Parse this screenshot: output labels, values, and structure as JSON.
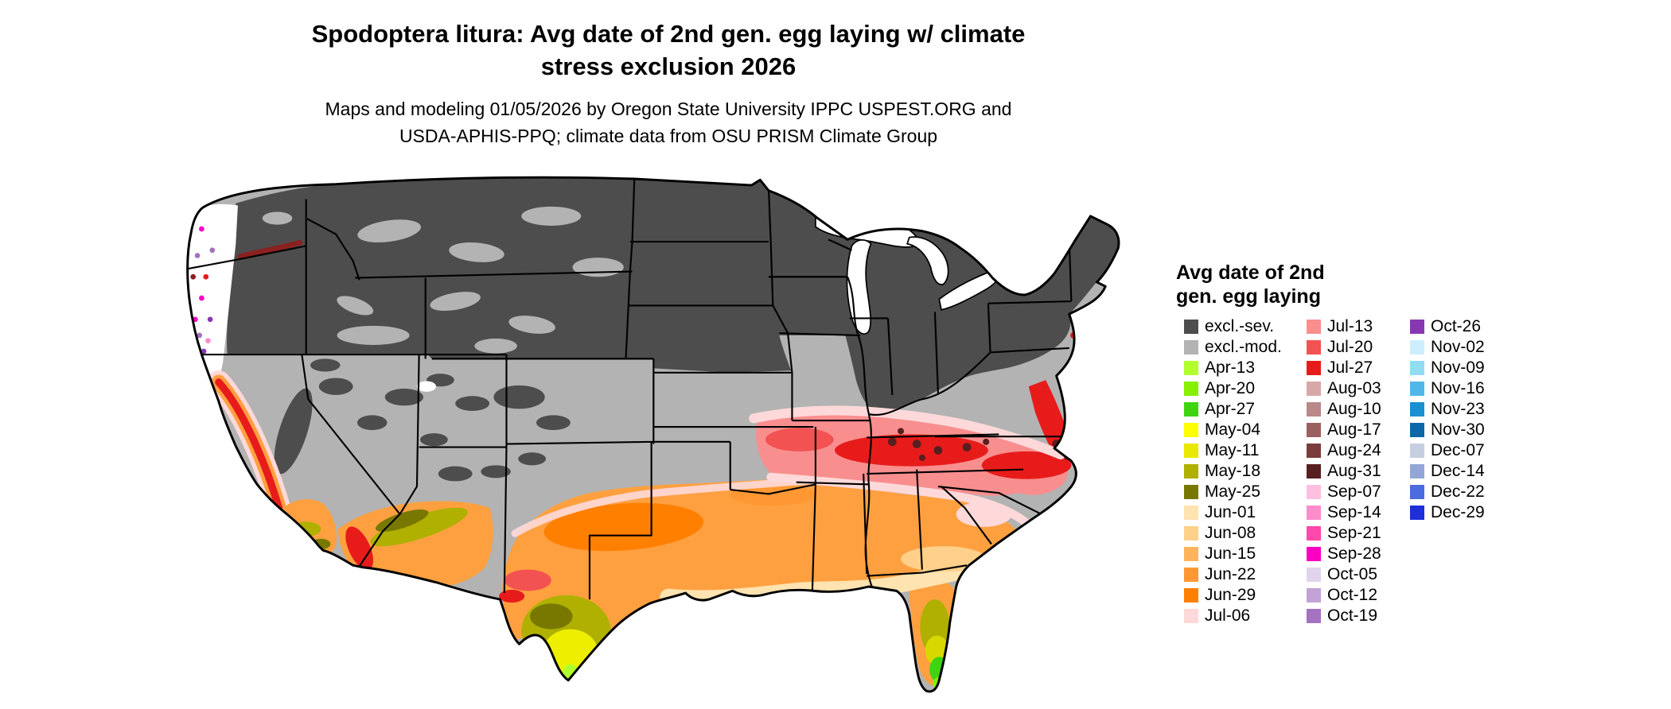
{
  "title": {
    "line1": "Spodoptera litura: Avg date of 2nd gen. egg laying w/ climate",
    "line2": "stress exclusion 2026"
  },
  "subtitle": {
    "line1": "Maps and modeling 01/05/2026 by Oregon State University IPPC USPEST.ORG and",
    "line2": "USDA-APHIS-PPQ; climate data from OSU PRISM Climate Group"
  },
  "legend": {
    "title_line1": "Avg date of 2nd",
    "title_line2": "gen. egg laying",
    "columns": [
      {
        "entries": [
          {
            "label": "excl.-sev.",
            "color": "#4d4d4d"
          },
          {
            "label": "excl.-mod.",
            "color": "#b3b3b3"
          },
          {
            "label": "Apr-13",
            "color": "#b2ff2e"
          },
          {
            "label": "Apr-20",
            "color": "#86f000"
          },
          {
            "label": "Apr-27",
            "color": "#3fd410"
          },
          {
            "label": "May-04",
            "color": "#ffff00"
          },
          {
            "label": "May-11",
            "color": "#e8e800"
          },
          {
            "label": "May-18",
            "color": "#b0b000"
          },
          {
            "label": "May-25",
            "color": "#787800"
          },
          {
            "label": "Jun-01",
            "color": "#ffe3b0"
          },
          {
            "label": "Jun-08",
            "color": "#ffd08a"
          },
          {
            "label": "Jun-15",
            "color": "#ffb35c"
          },
          {
            "label": "Jun-22",
            "color": "#ff9832"
          },
          {
            "label": "Jun-29",
            "color": "#ff7f00"
          },
          {
            "label": "Jul-06",
            "color": "#ffd9d9"
          }
        ]
      },
      {
        "entries": [
          {
            "label": "Jul-13",
            "color": "#f98e8e"
          },
          {
            "label": "Jul-20",
            "color": "#f25252"
          },
          {
            "label": "Jul-27",
            "color": "#e81b1b"
          },
          {
            "label": "Aug-03",
            "color": "#d8a8a8"
          },
          {
            "label": "Aug-10",
            "color": "#b98888"
          },
          {
            "label": "Aug-17",
            "color": "#9a6060"
          },
          {
            "label": "Aug-24",
            "color": "#7b3c3c"
          },
          {
            "label": "Aug-31",
            "color": "#571f1f"
          },
          {
            "label": "Sep-07",
            "color": "#ffc0e0"
          },
          {
            "label": "Sep-14",
            "color": "#ff8cca"
          },
          {
            "label": "Sep-21",
            "color": "#ff48ab"
          },
          {
            "label": "Sep-28",
            "color": "#fb00c3"
          },
          {
            "label": "Oct-05",
            "color": "#e2d4ec"
          },
          {
            "label": "Oct-12",
            "color": "#c3a2d6"
          },
          {
            "label": "Oct-19",
            "color": "#a472c0"
          }
        ]
      },
      {
        "entries": [
          {
            "label": "Oct-26",
            "color": "#8838ae"
          },
          {
            "label": "Nov-02",
            "color": "#cdeeff"
          },
          {
            "label": "Nov-09",
            "color": "#92dcf2"
          },
          {
            "label": "Nov-16",
            "color": "#4fb8e8"
          },
          {
            "label": "Nov-23",
            "color": "#1b90d0"
          },
          {
            "label": "Nov-30",
            "color": "#0b67a8"
          },
          {
            "label": "Dec-07",
            "color": "#c5cfe0"
          },
          {
            "label": "Dec-14",
            "color": "#92a6d8"
          },
          {
            "label": "Dec-22",
            "color": "#4a6ce0"
          },
          {
            "label": "Dec-29",
            "color": "#1c2fd8"
          }
        ]
      }
    ]
  },
  "colors": {
    "background": "#ffffff",
    "map_outline": "#000000",
    "excluded_severe": "#4d4d4d",
    "excluded_moderate": "#b3b3b3"
  }
}
